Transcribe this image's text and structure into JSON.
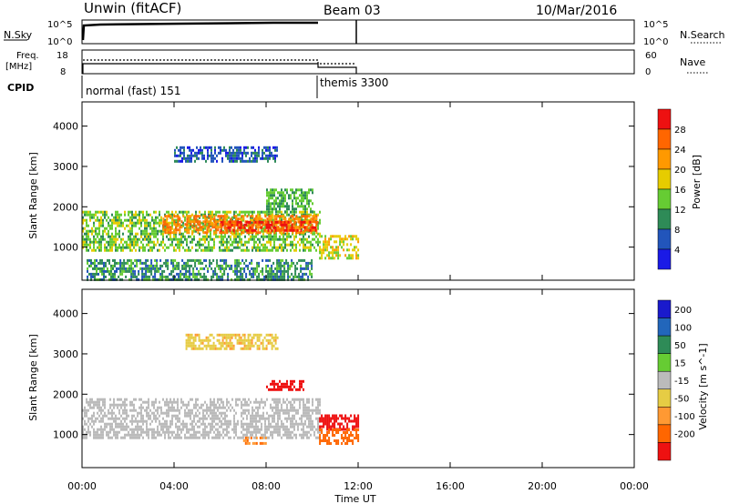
{
  "header": {
    "title": "Unwin (fitACF)",
    "beam": "Beam 03",
    "date": "10/Mar/2016"
  },
  "status_panels": {
    "nsky_label": "N.Sky",
    "nsky_ticks": [
      "10^5",
      "10^0"
    ],
    "nsearch_label": "N.Search",
    "nsearch_ticks": [
      "10^5",
      "10^0"
    ],
    "freq_label_line1": "Freq.",
    "freq_label_line2": "[MHz]",
    "freq_ticks": [
      "18",
      "8"
    ],
    "nave_label": "Nave",
    "nave_ticks": [
      "60",
      "0"
    ],
    "cpid_label": "CPID",
    "cpid_modes": [
      {
        "label": "normal (fast) 151",
        "start_hour": 0,
        "end_hour": 10.2
      },
      {
        "label": "themis 3300",
        "start_hour": 10.2,
        "end_hour": 12
      }
    ]
  },
  "chart_data": [
    {
      "type": "heatmap",
      "name": "Power",
      "ylabel": "Slant Range [km]",
      "xlabel": "Time UT",
      "x_ticks": [
        "00:00",
        "04:00",
        "08:00",
        "12:00",
        "16:00",
        "20:00",
        "00:00"
      ],
      "x_range_hours": [
        0,
        24
      ],
      "y_ticks": [
        1000,
        2000,
        3000,
        4000
      ],
      "ylim": [
        180,
        4600
      ],
      "colorbar_label": "Power [dB]",
      "colorbar_ticks": [
        "4",
        "8",
        "12",
        "16",
        "20",
        "24",
        "28"
      ],
      "colorbar_colors": [
        "#1a1ae6",
        "#2255bb",
        "#2e8b57",
        "#66cc33",
        "#e6cc00",
        "#ff9900",
        "#ff6600",
        "#ee1111"
      ],
      "regions": [
        {
          "t0": 0.0,
          "t1": 10.3,
          "r0": 900,
          "r1": 1900,
          "value": 14
        },
        {
          "t0": 3.5,
          "t1": 10.2,
          "r0": 1350,
          "r1": 1800,
          "value": 24
        },
        {
          "t0": 6.0,
          "t1": 10.2,
          "r0": 1400,
          "r1": 1650,
          "value": 29
        },
        {
          "t0": 4.0,
          "t1": 8.5,
          "r0": 3100,
          "r1": 3500,
          "value": 6
        },
        {
          "t0": 8.0,
          "t1": 10.0,
          "r0": 1850,
          "r1": 2450,
          "value": 12
        },
        {
          "t0": 10.3,
          "t1": 12.0,
          "r0": 700,
          "r1": 1300,
          "value": 18
        },
        {
          "t0": 0.2,
          "t1": 10.0,
          "r0": 200,
          "r1": 700,
          "value": 10
        }
      ]
    },
    {
      "type": "heatmap",
      "name": "Velocity",
      "ylabel": "Slant Range [km]",
      "xlabel": "Time UT",
      "x_ticks": [
        "00:00",
        "04:00",
        "08:00",
        "12:00",
        "16:00",
        "20:00",
        "00:00"
      ],
      "x_range_hours": [
        0,
        24
      ],
      "y_ticks": [
        1000,
        2000,
        3000,
        4000
      ],
      "ylim": [
        180,
        4600
      ],
      "colorbar_label": "Velocity [m s^-1]",
      "colorbar_ticks": [
        "200",
        "100",
        "50",
        "15",
        "-15",
        "-50",
        "-100",
        "-200"
      ],
      "colorbar_colors": [
        "#1a1acc",
        "#2266bb",
        "#2e8b57",
        "#66cc33",
        "#bbbbbb",
        "#e6cc44",
        "#ff9933",
        "#ff6600",
        "#ee1111"
      ],
      "regions": [
        {
          "t0": 0.0,
          "t1": 10.3,
          "r0": 900,
          "r1": 1900,
          "value": 0
        },
        {
          "t0": 4.5,
          "t1": 8.5,
          "r0": 3100,
          "r1": 3500,
          "value": -40
        },
        {
          "t0": 8.0,
          "t1": 9.6,
          "r0": 2100,
          "r1": 2350,
          "value": -220
        },
        {
          "t0": 10.3,
          "t1": 12.0,
          "r0": 1150,
          "r1": 1500,
          "value": -220
        },
        {
          "t0": 10.3,
          "t1": 12.0,
          "r0": 750,
          "r1": 1150,
          "value": -130
        },
        {
          "t0": 7.0,
          "t1": 8.0,
          "r0": 800,
          "r1": 950,
          "value": -100
        }
      ]
    }
  ]
}
